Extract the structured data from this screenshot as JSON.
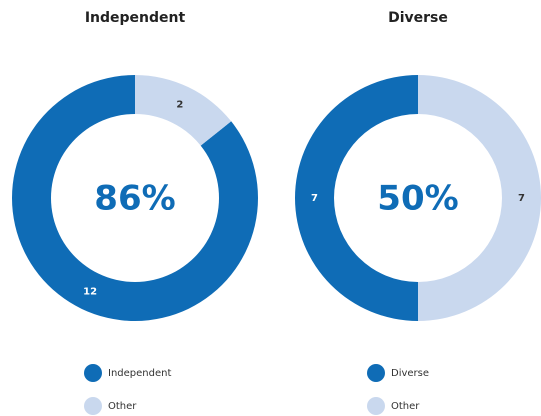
{
  "chart_data": [
    {
      "type": "donut",
      "title": "Independent",
      "center_label": "86%",
      "categories": [
        "Independent",
        "Other"
      ],
      "values": [
        12,
        2
      ],
      "colors": [
        "#0f6cb6",
        "#c9d8ee"
      ]
    },
    {
      "type": "donut",
      "title": "Diverse",
      "center_label": "50%",
      "categories": [
        "Diverse",
        "Other"
      ],
      "values": [
        7,
        7
      ],
      "colors": [
        "#0f6cb6",
        "#c9d8ee"
      ]
    }
  ]
}
